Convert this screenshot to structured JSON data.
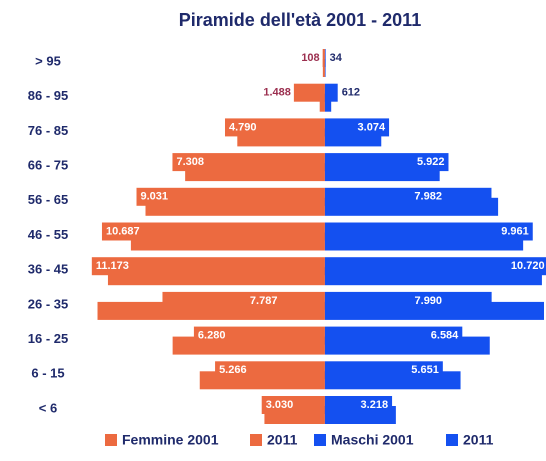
{
  "chart_data": {
    "type": "pyramid",
    "title": "Piramide dell'età 2001 - 2011",
    "categories": [
      "> 95",
      "86 - 95",
      "76 - 85",
      "66 - 75",
      "56 - 65",
      "46 - 55",
      "36 - 45",
      "26 - 35",
      "16 - 25",
      "6 - 15",
      "< 6"
    ],
    "xlim": [
      -11500,
      10500
    ],
    "series": [
      {
        "name": "Femmine 2001",
        "color": "#ec6a40",
        "side": "left",
        "values": [
          100,
          250,
          4200,
          6700,
          8600,
          9300,
          10400,
          10900,
          7300,
          6000,
          2900
        ]
      },
      {
        "name": "2011",
        "color": "#ec6a40",
        "side": "left",
        "values": [
          108,
          1488,
          4790,
          7308,
          9031,
          10687,
          11173,
          7787,
          6280,
          5266,
          3030
        ],
        "value_labels": [
          "108",
          "1.488",
          "4.790",
          "7.308",
          "9.031",
          "10.687",
          "11.173",
          "7.787",
          "6.280",
          "5.266",
          "3.030"
        ]
      },
      {
        "name": "Maschi 2001",
        "color": "#1450f0",
        "side": "right",
        "values": [
          30,
          300,
          2700,
          5500,
          8300,
          9500,
          10400,
          10500,
          7900,
          6500,
          3400
        ]
      },
      {
        "name": "2011",
        "color": "#1450f0",
        "side": "right",
        "values": [
          34,
          612,
          3074,
          5922,
          7982,
          9961,
          10720,
          7990,
          6584,
          5651,
          3218
        ],
        "value_labels": [
          "34",
          "612",
          "3.074",
          "5.922",
          "7.982",
          "9.961",
          "10.720",
          "7.990",
          "6.584",
          "5.651",
          "3.218"
        ]
      }
    ]
  }
}
